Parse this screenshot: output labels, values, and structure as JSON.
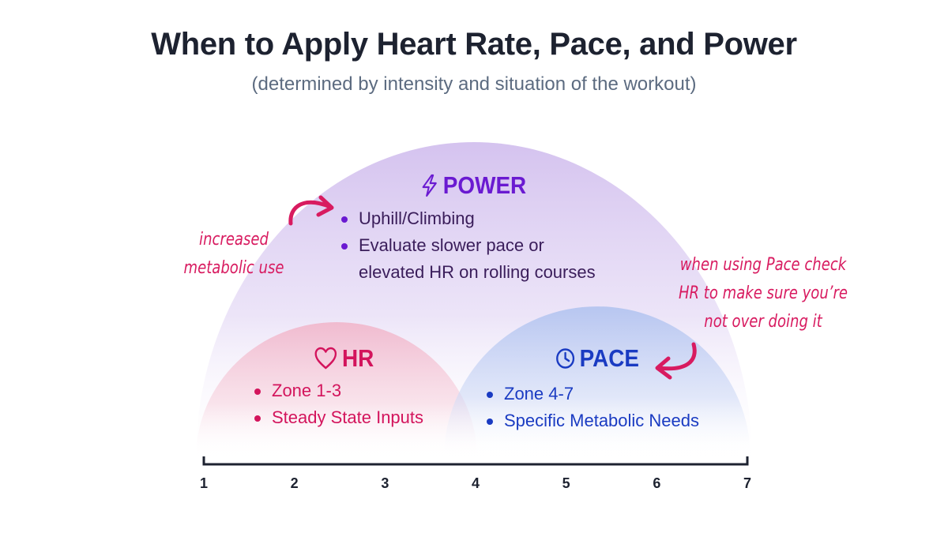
{
  "title": "When to Apply Heart Rate, Pace, and Power",
  "subtitle": "(determined by intensity and situation of the workout)",
  "colors": {
    "power": "#6a1ad1",
    "hr": "#d3145c",
    "pace": "#1a3bc2",
    "annotation": "#d81b60"
  },
  "power": {
    "icon": "lightning-bolt-icon",
    "label": "POWER",
    "items": [
      "Uphill/Climbing",
      "Evaluate slower pace or",
      "elevated HR on rolling courses"
    ]
  },
  "hr": {
    "icon": "heart-icon",
    "label": "HR",
    "items": [
      "Zone 1-3",
      "Steady State Inputs"
    ]
  },
  "pace": {
    "icon": "clock-icon",
    "label": "PACE",
    "items": [
      "Zone 4-7",
      "Specific Metabolic Needs"
    ]
  },
  "annotations": {
    "left": [
      "increased",
      "metabolic use"
    ],
    "right": [
      "when using Pace check",
      "HR to make sure you’re",
      "not over doing it"
    ]
  },
  "axis": {
    "ticks": [
      "1",
      "2",
      "3",
      "4",
      "5",
      "6",
      "7"
    ]
  }
}
